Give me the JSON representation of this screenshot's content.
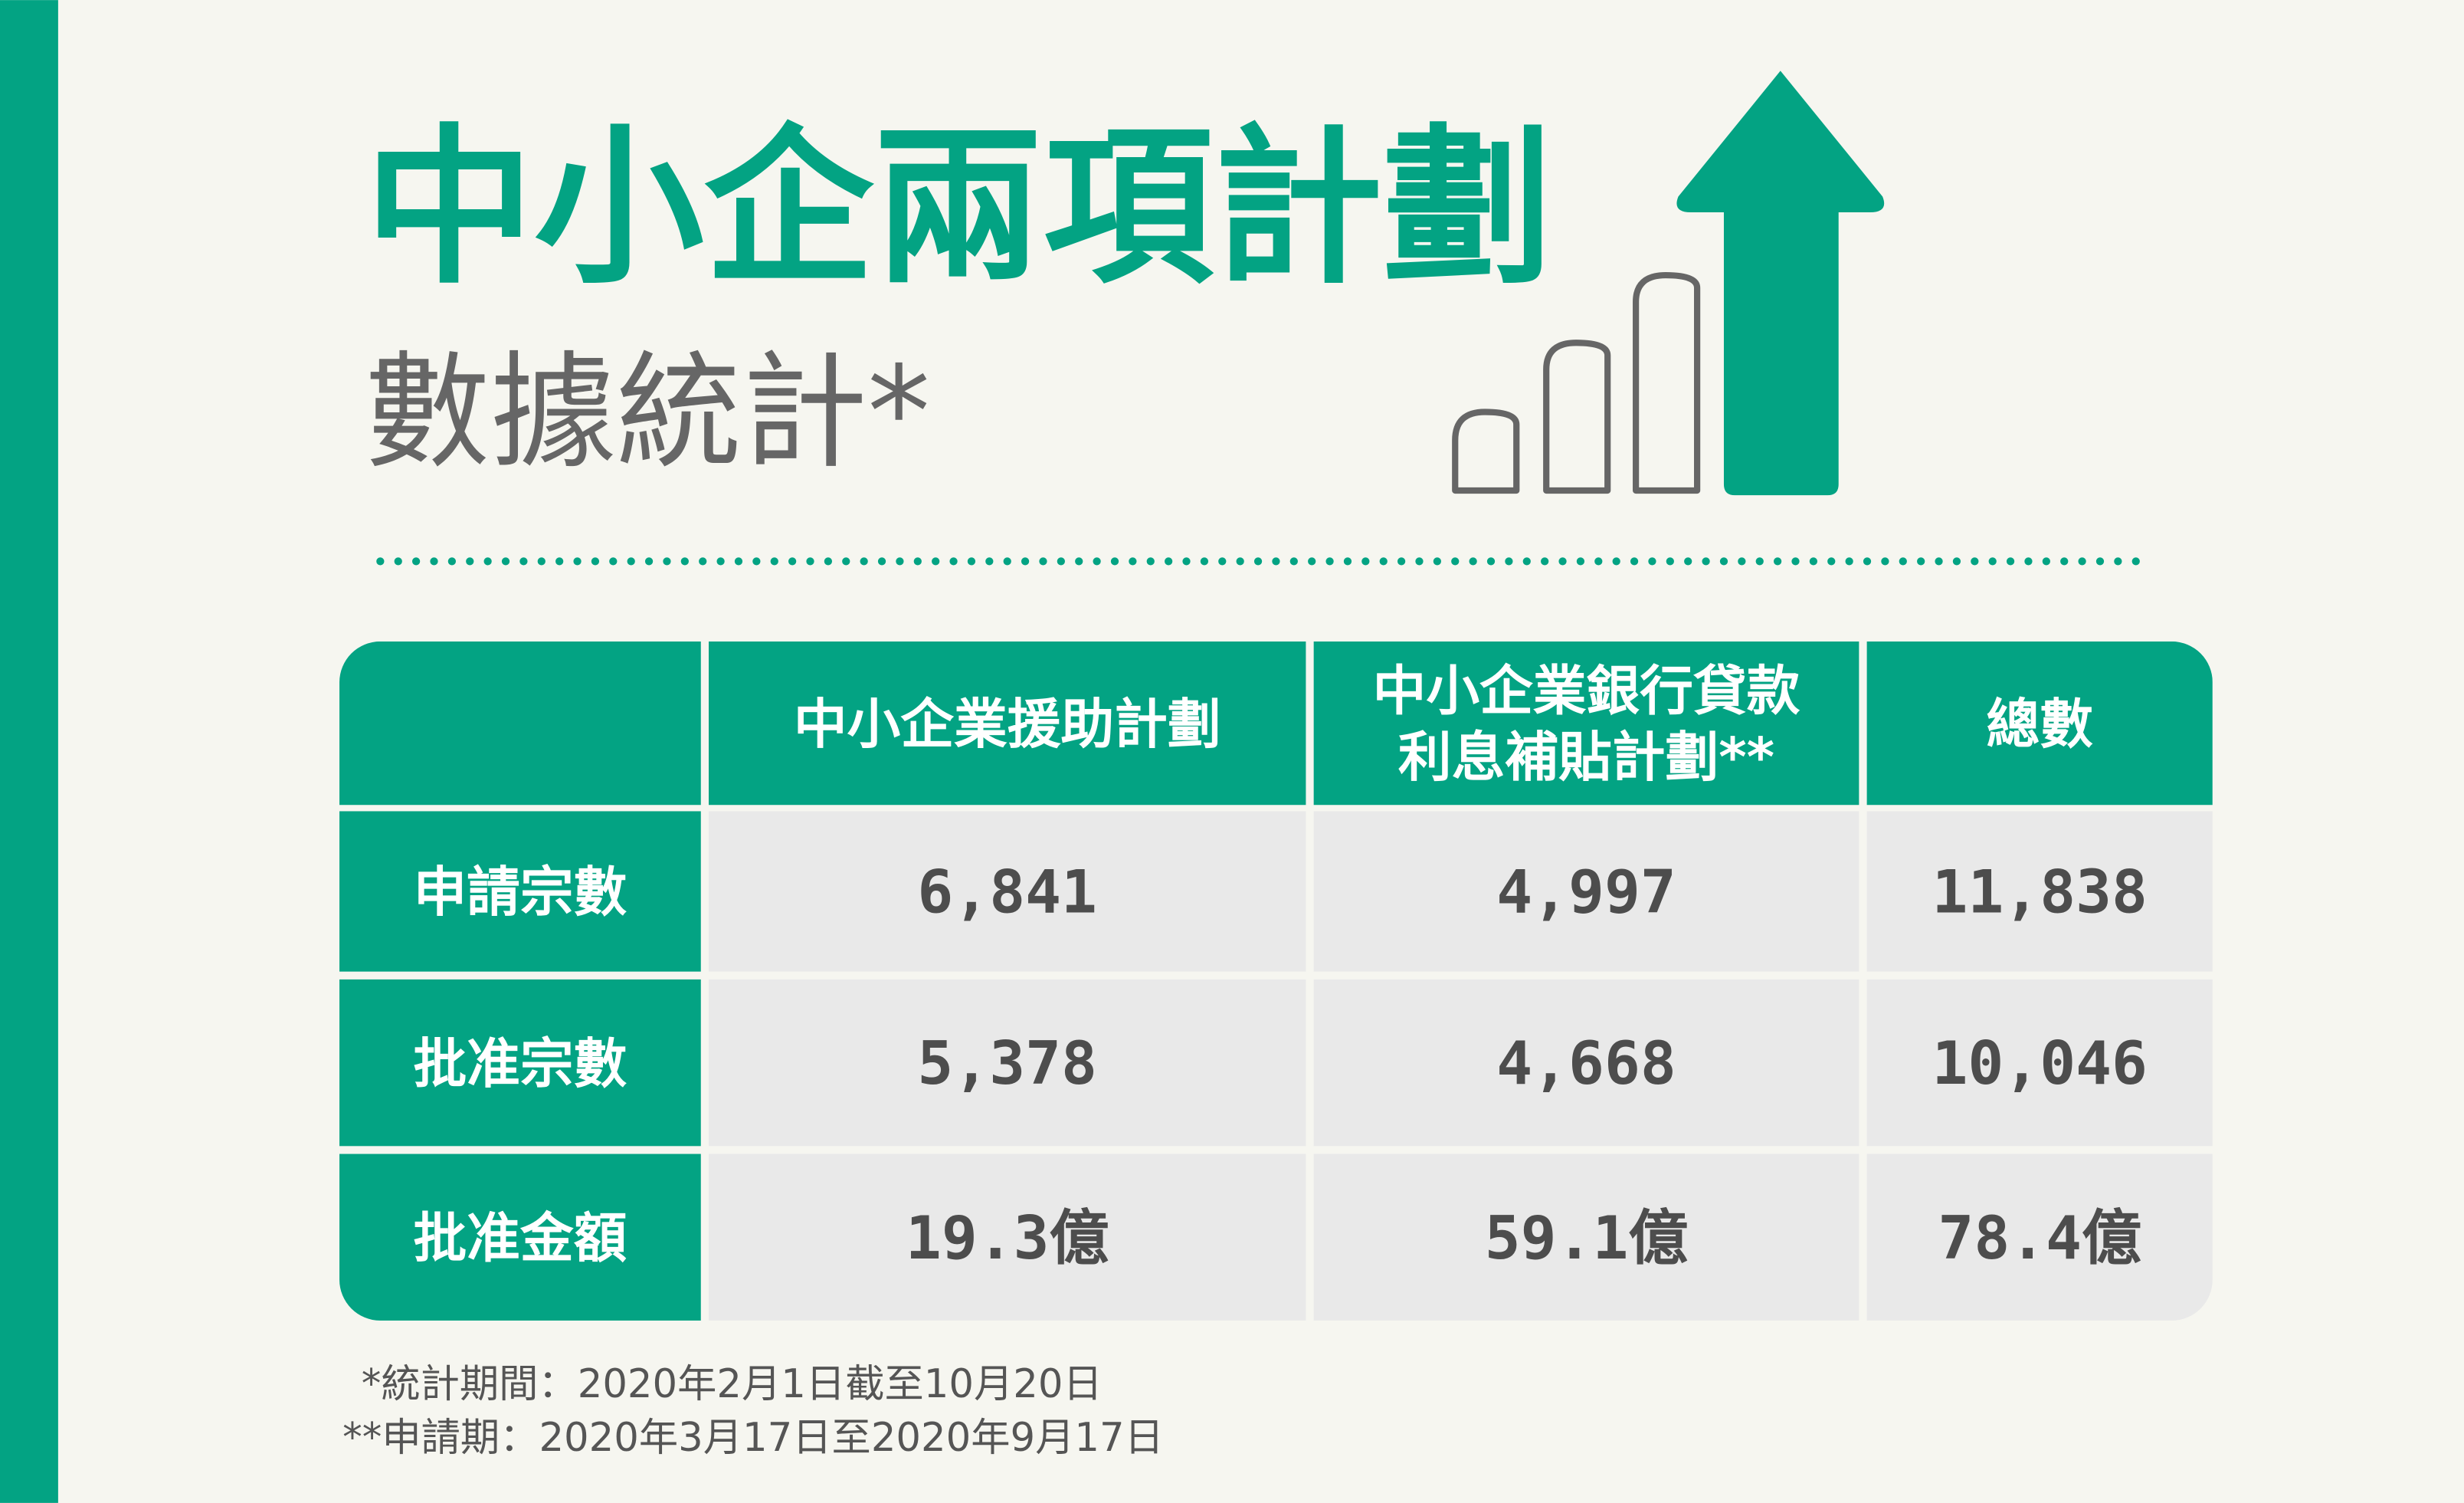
{
  "header": {
    "title": "中小企兩項計劃",
    "subtitle": "數據統計*"
  },
  "table": {
    "columns": [
      "中小企業援助計劃",
      [
        "中小企業銀行貸款",
        "利息補貼計劃**"
      ],
      "總數"
    ],
    "rows": [
      {
        "label": "申請宗數",
        "cells": [
          "6,841",
          "4,997",
          "11,838"
        ]
      },
      {
        "label": "批准宗數",
        "cells": [
          "5,378",
          "4,668",
          "10,046"
        ]
      },
      {
        "label": "批准金額",
        "cells": [
          "19.3億",
          "59.1億",
          "78.4億"
        ]
      }
    ]
  },
  "footnotes": [
    "*統計期間：2020年2月1日截至10月20日",
    "**申請期：2020年3月17日至2020年9月17日"
  ]
}
